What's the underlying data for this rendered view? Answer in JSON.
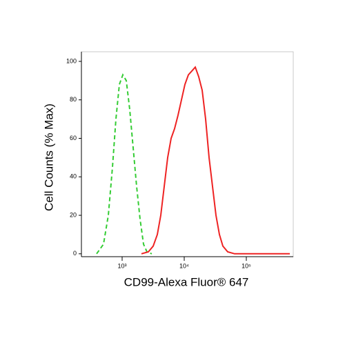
{
  "chart_data": {
    "type": "line",
    "xlabel": "CD99-Alexa Fluor® 647",
    "ylabel": "Cell Counts (% Max)",
    "xscale": "log",
    "xlim": [
      221,
      570000
    ],
    "ylim": [
      -1.5,
      105
    ],
    "xticks": [
      {
        "value": 1000,
        "label": "10³"
      },
      {
        "value": 10000,
        "label": "10⁴"
      },
      {
        "value": 100000,
        "label": "10⁵"
      }
    ],
    "yticks": [
      0,
      20,
      40,
      60,
      80,
      100
    ],
    "series": [
      {
        "color": "#33cc33",
        "dashed": true,
        "x": [
          388,
          501,
          600,
          699,
          794,
          903,
          1026,
          1166,
          1325,
          1506,
          1711,
          1945,
          2209,
          2512,
          3006
        ],
        "values": [
          0,
          5,
          20,
          45,
          70,
          88,
          93,
          90,
          75,
          55,
          35,
          18,
          5,
          1,
          0
        ]
      },
      {
        "color": "#ee2222",
        "dashed": false,
        "x": [
          2048,
          2642,
          3162,
          3687,
          4190,
          4760,
          5412,
          6152,
          6988,
          7943,
          9031,
          10260,
          11660,
          13250,
          15060,
          17110,
          19450,
          22090,
          25120,
          28550,
          32450,
          36870,
          41900,
          50120,
          64730,
          501200
        ],
        "values": [
          0,
          1,
          4,
          10,
          20,
          35,
          50,
          60,
          65,
          72,
          80,
          88,
          93,
          95,
          97,
          92,
          85,
          70,
          50,
          35,
          20,
          10,
          4,
          1,
          0,
          0
        ]
      }
    ]
  }
}
